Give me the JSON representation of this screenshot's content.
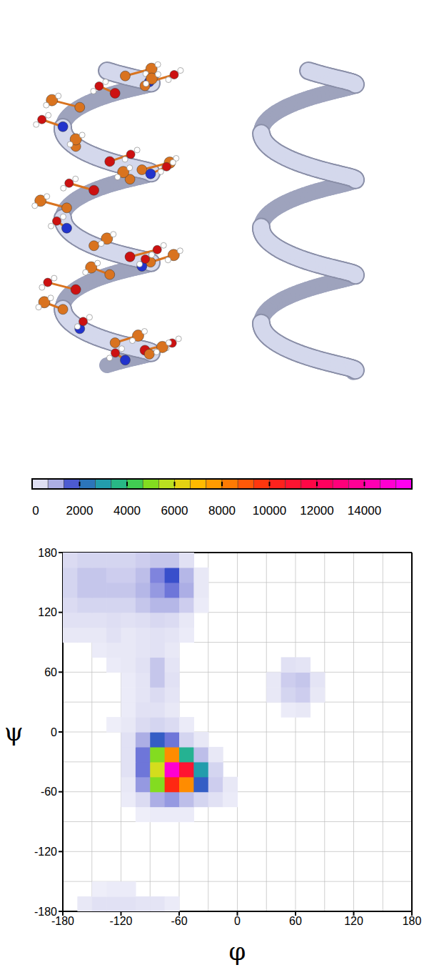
{
  "chart_data": {
    "type": "contour",
    "x_label": "φ",
    "y_label": "ψ",
    "xlim": [
      -180,
      180
    ],
    "ylim": [
      -180,
      180
    ],
    "xticks": [
      -180,
      -120,
      -60,
      0,
      60,
      120,
      180
    ],
    "yticks": [
      -180,
      -120,
      -60,
      0,
      60,
      120,
      180
    ],
    "grid": true,
    "cell_size": 15,
    "colorbar": {
      "range": [
        0,
        16000
      ],
      "ticks": [
        0,
        2000,
        4000,
        6000,
        8000,
        10000,
        12000,
        14000
      ]
    },
    "cells": [
      [
        -165,
        -180,
        200
      ],
      [
        -150,
        -180,
        300
      ],
      [
        -135,
        -180,
        300
      ],
      [
        -120,
        -180,
        300
      ],
      [
        -105,
        -180,
        250
      ],
      [
        -90,
        -180,
        250
      ],
      [
        -75,
        -180,
        150
      ],
      [
        -150,
        -165,
        100
      ],
      [
        -135,
        -165,
        150
      ],
      [
        -120,
        -165,
        150
      ],
      [
        -105,
        -90,
        100
      ],
      [
        -90,
        -90,
        150
      ],
      [
        -75,
        -90,
        150
      ],
      [
        -60,
        -90,
        150
      ],
      [
        -120,
        -75,
        150
      ],
      [
        -105,
        -75,
        400
      ],
      [
        -90,
        -75,
        1000
      ],
      [
        -75,
        -75,
        1200
      ],
      [
        -60,
        -75,
        800
      ],
      [
        -45,
        -75,
        500
      ],
      [
        -30,
        -75,
        300
      ],
      [
        -15,
        -75,
        150
      ],
      [
        -120,
        -60,
        200
      ],
      [
        -105,
        -60,
        1200
      ],
      [
        -90,
        -60,
        5000
      ],
      [
        -75,
        -60,
        10000
      ],
      [
        -60,
        -60,
        8000
      ],
      [
        -45,
        -60,
        2000
      ],
      [
        -30,
        -60,
        600
      ],
      [
        -15,
        -60,
        200
      ],
      [
        -120,
        -45,
        300
      ],
      [
        -105,
        -45,
        1500
      ],
      [
        -90,
        -45,
        6000
      ],
      [
        -75,
        -45,
        15000
      ],
      [
        -60,
        -45,
        11000
      ],
      [
        -45,
        -45,
        3000
      ],
      [
        -30,
        -45,
        500
      ],
      [
        -120,
        -30,
        300
      ],
      [
        -105,
        -30,
        1500
      ],
      [
        -90,
        -30,
        5000
      ],
      [
        -75,
        -30,
        8000
      ],
      [
        -60,
        -30,
        3500
      ],
      [
        -45,
        -30,
        800
      ],
      [
        -30,
        -30,
        200
      ],
      [
        -120,
        -15,
        300
      ],
      [
        -105,
        -15,
        1000
      ],
      [
        -90,
        -15,
        2000
      ],
      [
        -75,
        -15,
        1500
      ],
      [
        -60,
        -15,
        500
      ],
      [
        -45,
        -15,
        200
      ],
      [
        -135,
        0,
        100
      ],
      [
        -120,
        0,
        200
      ],
      [
        -105,
        0,
        400
      ],
      [
        -90,
        0,
        500
      ],
      [
        -75,
        0,
        400
      ],
      [
        -60,
        0,
        150
      ],
      [
        -120,
        15,
        150
      ],
      [
        -105,
        15,
        300
      ],
      [
        -90,
        15,
        300
      ],
      [
        -75,
        15,
        200
      ],
      [
        45,
        15,
        150
      ],
      [
        60,
        15,
        200
      ],
      [
        -120,
        30,
        150
      ],
      [
        -105,
        30,
        250
      ],
      [
        -90,
        30,
        400
      ],
      [
        -75,
        30,
        250
      ],
      [
        30,
        30,
        200
      ],
      [
        45,
        30,
        500
      ],
      [
        60,
        30,
        600
      ],
      [
        75,
        30,
        200
      ],
      [
        -120,
        45,
        150
      ],
      [
        -105,
        45,
        250
      ],
      [
        -90,
        45,
        700
      ],
      [
        -75,
        45,
        300
      ],
      [
        30,
        45,
        200
      ],
      [
        45,
        45,
        600
      ],
      [
        60,
        45,
        700
      ],
      [
        75,
        45,
        250
      ],
      [
        -135,
        60,
        150
      ],
      [
        -120,
        60,
        200
      ],
      [
        -105,
        60,
        300
      ],
      [
        -90,
        60,
        700
      ],
      [
        -75,
        60,
        250
      ],
      [
        45,
        60,
        300
      ],
      [
        60,
        60,
        250
      ],
      [
        -150,
        75,
        150
      ],
      [
        -135,
        75,
        200
      ],
      [
        -120,
        75,
        200
      ],
      [
        -105,
        75,
        250
      ],
      [
        -90,
        75,
        300
      ],
      [
        -75,
        75,
        200
      ],
      [
        -180,
        90,
        200
      ],
      [
        -165,
        90,
        200
      ],
      [
        -150,
        90,
        200
      ],
      [
        -135,
        90,
        300
      ],
      [
        -120,
        90,
        200
      ],
      [
        -105,
        90,
        250
      ],
      [
        -90,
        90,
        300
      ],
      [
        -75,
        90,
        250
      ],
      [
        -60,
        90,
        150
      ],
      [
        -180,
        105,
        300
      ],
      [
        -165,
        105,
        300
      ],
      [
        -150,
        105,
        300
      ],
      [
        -135,
        105,
        350
      ],
      [
        -120,
        105,
        300
      ],
      [
        -105,
        105,
        350
      ],
      [
        -90,
        105,
        450
      ],
      [
        -75,
        105,
        400
      ],
      [
        -60,
        105,
        200
      ],
      [
        -180,
        120,
        400
      ],
      [
        -165,
        120,
        500
      ],
      [
        -150,
        120,
        500
      ],
      [
        -135,
        120,
        500
      ],
      [
        -120,
        120,
        500
      ],
      [
        -105,
        120,
        700
      ],
      [
        -90,
        120,
        900
      ],
      [
        -75,
        120,
        900
      ],
      [
        -60,
        120,
        600
      ],
      [
        -45,
        120,
        150
      ],
      [
        -180,
        135,
        500
      ],
      [
        -165,
        135,
        700
      ],
      [
        -150,
        135,
        700
      ],
      [
        -135,
        135,
        700
      ],
      [
        -120,
        135,
        700
      ],
      [
        -105,
        135,
        900
      ],
      [
        -90,
        135,
        1200
      ],
      [
        -75,
        135,
        1500
      ],
      [
        -60,
        135,
        1000
      ],
      [
        -45,
        135,
        200
      ],
      [
        -180,
        150,
        500
      ],
      [
        -165,
        150,
        700
      ],
      [
        -150,
        150,
        700
      ],
      [
        -135,
        150,
        600
      ],
      [
        -120,
        150,
        600
      ],
      [
        -105,
        150,
        800
      ],
      [
        -90,
        150,
        1400
      ],
      [
        -75,
        150,
        1800
      ],
      [
        -60,
        150,
        900
      ],
      [
        -45,
        150,
        200
      ],
      [
        -180,
        165,
        400
      ],
      [
        -165,
        165,
        500
      ],
      [
        -150,
        165,
        500
      ],
      [
        -135,
        165,
        500
      ],
      [
        -120,
        165,
        500
      ],
      [
        -105,
        165,
        600
      ],
      [
        -90,
        165,
        700
      ],
      [
        -75,
        165,
        700
      ],
      [
        -60,
        165,
        300
      ]
    ]
  }
}
